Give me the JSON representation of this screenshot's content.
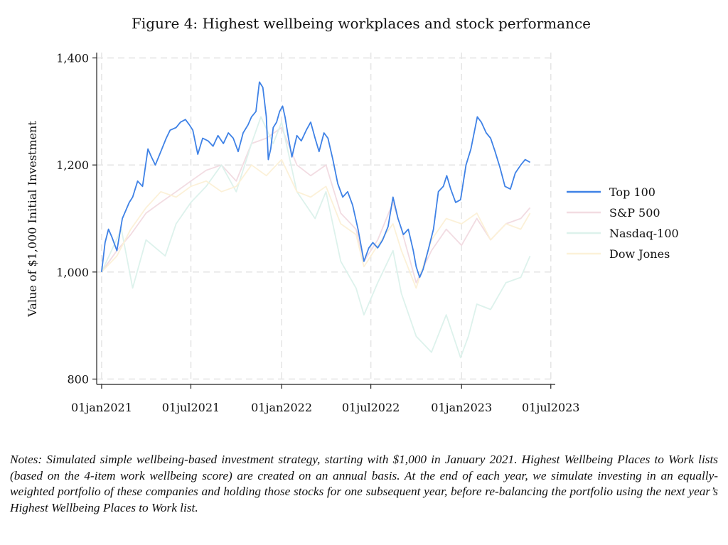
{
  "chart_data": {
    "type": "line",
    "title": "Figure 4: Highest wellbeing workplaces and stock performance",
    "xlabel": "",
    "ylabel": "Value of $1,000 Initial Investment",
    "x_ticks": [
      "01jan2021",
      "01jul2021",
      "01jan2022",
      "01jul2022",
      "01jan2023",
      "01jul2023"
    ],
    "y_ticks": [
      "800",
      "1,000",
      "1,200",
      "1,400"
    ],
    "ylim": [
      790,
      1410
    ],
    "xlim": [
      "2020-12-22",
      "2023-07-10"
    ],
    "grid": true,
    "legend_position": "right",
    "series": [
      {
        "name": "Top 100",
        "color": "#3f82e6",
        "points": [
          [
            "2021-01-01",
            1000
          ],
          [
            "2021-01-08",
            1055
          ],
          [
            "2021-01-15",
            1080
          ],
          [
            "2021-01-22",
            1065
          ],
          [
            "2021-02-01",
            1040
          ],
          [
            "2021-02-12",
            1100
          ],
          [
            "2021-02-26",
            1130
          ],
          [
            "2021-03-05",
            1140
          ],
          [
            "2021-03-15",
            1170
          ],
          [
            "2021-03-25",
            1160
          ],
          [
            "2021-04-05",
            1230
          ],
          [
            "2021-04-12",
            1215
          ],
          [
            "2021-04-20",
            1200
          ],
          [
            "2021-05-01",
            1225
          ],
          [
            "2021-05-12",
            1250
          ],
          [
            "2021-05-20",
            1265
          ],
          [
            "2021-06-01",
            1270
          ],
          [
            "2021-06-10",
            1280
          ],
          [
            "2021-06-20",
            1285
          ],
          [
            "2021-06-28",
            1275
          ],
          [
            "2021-07-05",
            1265
          ],
          [
            "2021-07-15",
            1220
          ],
          [
            "2021-07-25",
            1250
          ],
          [
            "2021-08-05",
            1245
          ],
          [
            "2021-08-15",
            1235
          ],
          [
            "2021-08-25",
            1255
          ],
          [
            "2021-09-05",
            1240
          ],
          [
            "2021-09-15",
            1260
          ],
          [
            "2021-09-25",
            1250
          ],
          [
            "2021-10-05",
            1225
          ],
          [
            "2021-10-15",
            1260
          ],
          [
            "2021-10-25",
            1275
          ],
          [
            "2021-11-01",
            1290
          ],
          [
            "2021-11-10",
            1300
          ],
          [
            "2021-11-17",
            1355
          ],
          [
            "2021-11-24",
            1345
          ],
          [
            "2021-12-01",
            1290
          ],
          [
            "2021-12-05",
            1210
          ],
          [
            "2021-12-10",
            1230
          ],
          [
            "2021-12-15",
            1270
          ],
          [
            "2021-12-22",
            1280
          ],
          [
            "2021-12-28",
            1300
          ],
          [
            "2022-01-03",
            1310
          ],
          [
            "2022-01-08",
            1290
          ],
          [
            "2022-01-15",
            1250
          ],
          [
            "2022-01-22",
            1215
          ],
          [
            "2022-02-01",
            1255
          ],
          [
            "2022-02-10",
            1245
          ],
          [
            "2022-02-20",
            1265
          ],
          [
            "2022-03-01",
            1280
          ],
          [
            "2022-03-10",
            1250
          ],
          [
            "2022-03-18",
            1225
          ],
          [
            "2022-03-28",
            1260
          ],
          [
            "2022-04-05",
            1250
          ],
          [
            "2022-04-15",
            1210
          ],
          [
            "2022-04-25",
            1165
          ],
          [
            "2022-05-05",
            1140
          ],
          [
            "2022-05-15",
            1150
          ],
          [
            "2022-05-25",
            1125
          ],
          [
            "2022-06-05",
            1080
          ],
          [
            "2022-06-17",
            1020
          ],
          [
            "2022-06-27",
            1045
          ],
          [
            "2022-07-05",
            1055
          ],
          [
            "2022-07-15",
            1045
          ],
          [
            "2022-07-25",
            1060
          ],
          [
            "2022-08-05",
            1085
          ],
          [
            "2022-08-15",
            1140
          ],
          [
            "2022-08-25",
            1100
          ],
          [
            "2022-09-05",
            1070
          ],
          [
            "2022-09-15",
            1080
          ],
          [
            "2022-09-25",
            1040
          ],
          [
            "2022-10-01",
            1010
          ],
          [
            "2022-10-08",
            990
          ],
          [
            "2022-10-15",
            1005
          ],
          [
            "2022-10-25",
            1040
          ],
          [
            "2022-11-05",
            1080
          ],
          [
            "2022-11-15",
            1150
          ],
          [
            "2022-11-25",
            1160
          ],
          [
            "2022-12-02",
            1180
          ],
          [
            "2022-12-10",
            1155
          ],
          [
            "2022-12-20",
            1130
          ],
          [
            "2022-12-30",
            1135
          ],
          [
            "2023-01-10",
            1200
          ],
          [
            "2023-01-20",
            1230
          ],
          [
            "2023-02-02",
            1290
          ],
          [
            "2023-02-10",
            1280
          ],
          [
            "2023-02-20",
            1260
          ],
          [
            "2023-03-01",
            1250
          ],
          [
            "2023-03-10",
            1225
          ],
          [
            "2023-03-20",
            1195
          ],
          [
            "2023-03-30",
            1160
          ],
          [
            "2023-04-10",
            1155
          ],
          [
            "2023-04-20",
            1185
          ],
          [
            "2023-05-01",
            1200
          ],
          [
            "2023-05-10",
            1210
          ],
          [
            "2023-05-20",
            1205
          ]
        ]
      },
      {
        "name": "S&P 500",
        "color": "#f2dce2",
        "points": [
          [
            "2021-01-01",
            1000
          ],
          [
            "2021-02-01",
            1040
          ],
          [
            "2021-03-01",
            1070
          ],
          [
            "2021-04-01",
            1110
          ],
          [
            "2021-05-01",
            1130
          ],
          [
            "2021-06-01",
            1150
          ],
          [
            "2021-07-01",
            1170
          ],
          [
            "2021-08-01",
            1190
          ],
          [
            "2021-09-01",
            1200
          ],
          [
            "2021-10-01",
            1170
          ],
          [
            "2021-11-01",
            1240
          ],
          [
            "2021-12-01",
            1250
          ],
          [
            "2022-01-01",
            1270
          ],
          [
            "2022-02-01",
            1200
          ],
          [
            "2022-03-01",
            1180
          ],
          [
            "2022-04-01",
            1200
          ],
          [
            "2022-05-01",
            1110
          ],
          [
            "2022-06-01",
            1080
          ],
          [
            "2022-06-17",
            1020
          ],
          [
            "2022-07-15",
            1060
          ],
          [
            "2022-08-15",
            1130
          ],
          [
            "2022-09-01",
            1080
          ],
          [
            "2022-10-01",
            980
          ],
          [
            "2022-11-01",
            1040
          ],
          [
            "2022-12-01",
            1080
          ],
          [
            "2023-01-01",
            1050
          ],
          [
            "2023-02-01",
            1100
          ],
          [
            "2023-03-01",
            1060
          ],
          [
            "2023-04-01",
            1090
          ],
          [
            "2023-05-01",
            1100
          ],
          [
            "2023-05-20",
            1120
          ]
        ]
      },
      {
        "name": "Nasdaq-100",
        "color": "#ddf2ec",
        "points": [
          [
            "2021-01-01",
            1000
          ],
          [
            "2021-02-10",
            1080
          ],
          [
            "2021-03-05",
            970
          ],
          [
            "2021-04-01",
            1060
          ],
          [
            "2021-05-10",
            1030
          ],
          [
            "2021-06-01",
            1090
          ],
          [
            "2021-07-01",
            1130
          ],
          [
            "2021-08-01",
            1160
          ],
          [
            "2021-09-01",
            1200
          ],
          [
            "2021-10-01",
            1150
          ],
          [
            "2021-11-01",
            1240
          ],
          [
            "2021-11-20",
            1290
          ],
          [
            "2021-12-15",
            1240
          ],
          [
            "2022-01-01",
            1280
          ],
          [
            "2022-02-01",
            1150
          ],
          [
            "2022-03-10",
            1100
          ],
          [
            "2022-04-01",
            1150
          ],
          [
            "2022-05-01",
            1020
          ],
          [
            "2022-06-01",
            970
          ],
          [
            "2022-06-17",
            920
          ],
          [
            "2022-07-15",
            980
          ],
          [
            "2022-08-15",
            1040
          ],
          [
            "2022-09-01",
            960
          ],
          [
            "2022-10-01",
            880
          ],
          [
            "2022-11-01",
            850
          ],
          [
            "2022-12-01",
            920
          ],
          [
            "2022-12-30",
            840
          ],
          [
            "2023-01-15",
            880
          ],
          [
            "2023-02-01",
            940
          ],
          [
            "2023-03-01",
            930
          ],
          [
            "2023-04-01",
            980
          ],
          [
            "2023-05-01",
            990
          ],
          [
            "2023-05-20",
            1030
          ]
        ]
      },
      {
        "name": "Dow Jones",
        "color": "#fcf1d8",
        "points": [
          [
            "2021-01-01",
            1000
          ],
          [
            "2021-02-01",
            1030
          ],
          [
            "2021-03-01",
            1080
          ],
          [
            "2021-04-01",
            1120
          ],
          [
            "2021-05-01",
            1150
          ],
          [
            "2021-06-01",
            1140
          ],
          [
            "2021-07-01",
            1160
          ],
          [
            "2021-08-01",
            1170
          ],
          [
            "2021-09-01",
            1150
          ],
          [
            "2021-10-01",
            1160
          ],
          [
            "2021-11-01",
            1200
          ],
          [
            "2021-12-01",
            1180
          ],
          [
            "2022-01-01",
            1210
          ],
          [
            "2022-02-01",
            1150
          ],
          [
            "2022-03-01",
            1140
          ],
          [
            "2022-04-01",
            1160
          ],
          [
            "2022-05-01",
            1090
          ],
          [
            "2022-06-01",
            1070
          ],
          [
            "2022-06-17",
            1010
          ],
          [
            "2022-07-15",
            1050
          ],
          [
            "2022-08-15",
            1090
          ],
          [
            "2022-09-01",
            1040
          ],
          [
            "2022-10-01",
            970
          ],
          [
            "2022-11-01",
            1060
          ],
          [
            "2022-12-01",
            1100
          ],
          [
            "2023-01-01",
            1090
          ],
          [
            "2023-02-01",
            1110
          ],
          [
            "2023-03-01",
            1060
          ],
          [
            "2023-04-01",
            1090
          ],
          [
            "2023-05-01",
            1080
          ],
          [
            "2023-05-20",
            1110
          ]
        ]
      }
    ]
  },
  "notes": "Notes: Simulated simple wellbeing-based investment strategy, starting with $1,000 in January 2021. Highest Wellbeing Places to Work lists (based on the 4-item work wellbeing score) are created on an annual basis. At the end of each year, we simulate investing in an equally-weighted portfolio of these companies and holding those stocks for one subsequent year, before re-balancing the portfolio using the next year’s Highest Wellbeing Places to Work list."
}
